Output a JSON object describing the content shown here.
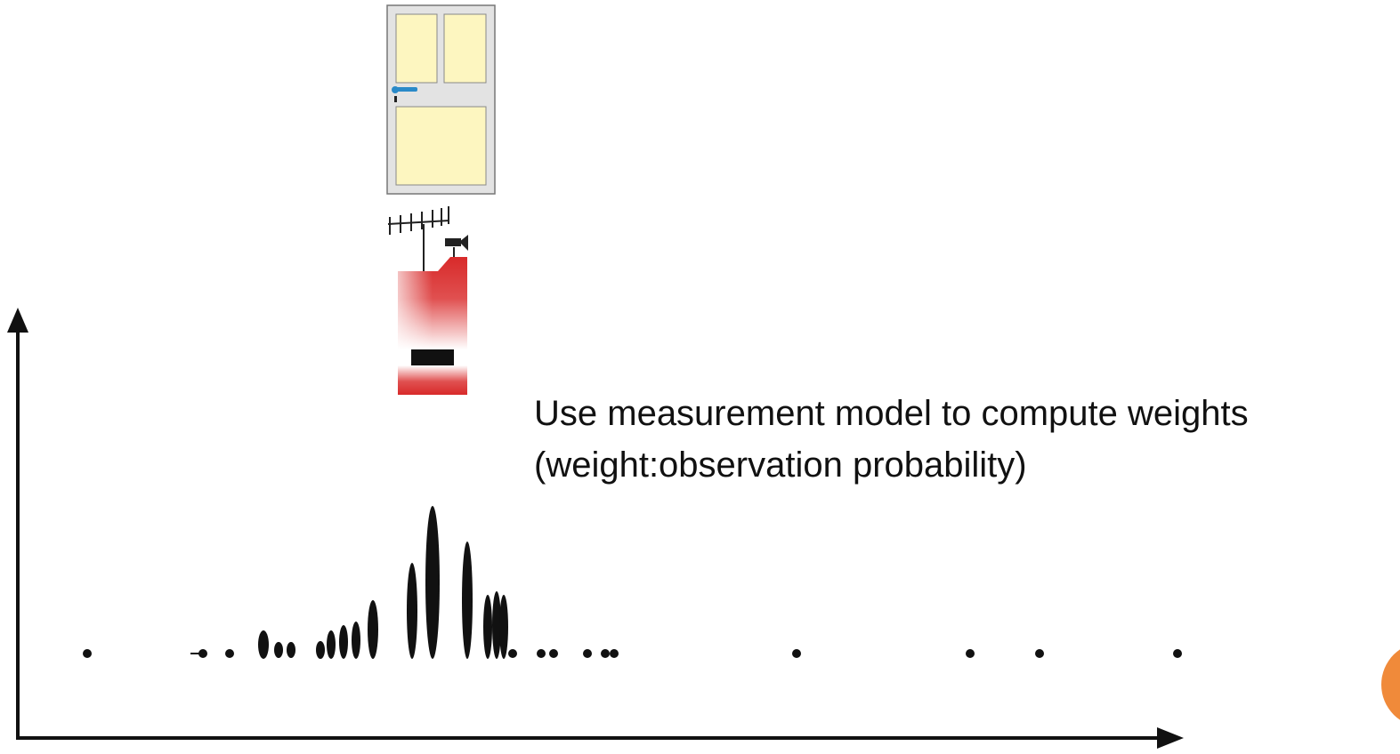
{
  "caption": {
    "line1": "Use measurement model to compute weights",
    "line2": "(weight:observation probability)"
  }
}
